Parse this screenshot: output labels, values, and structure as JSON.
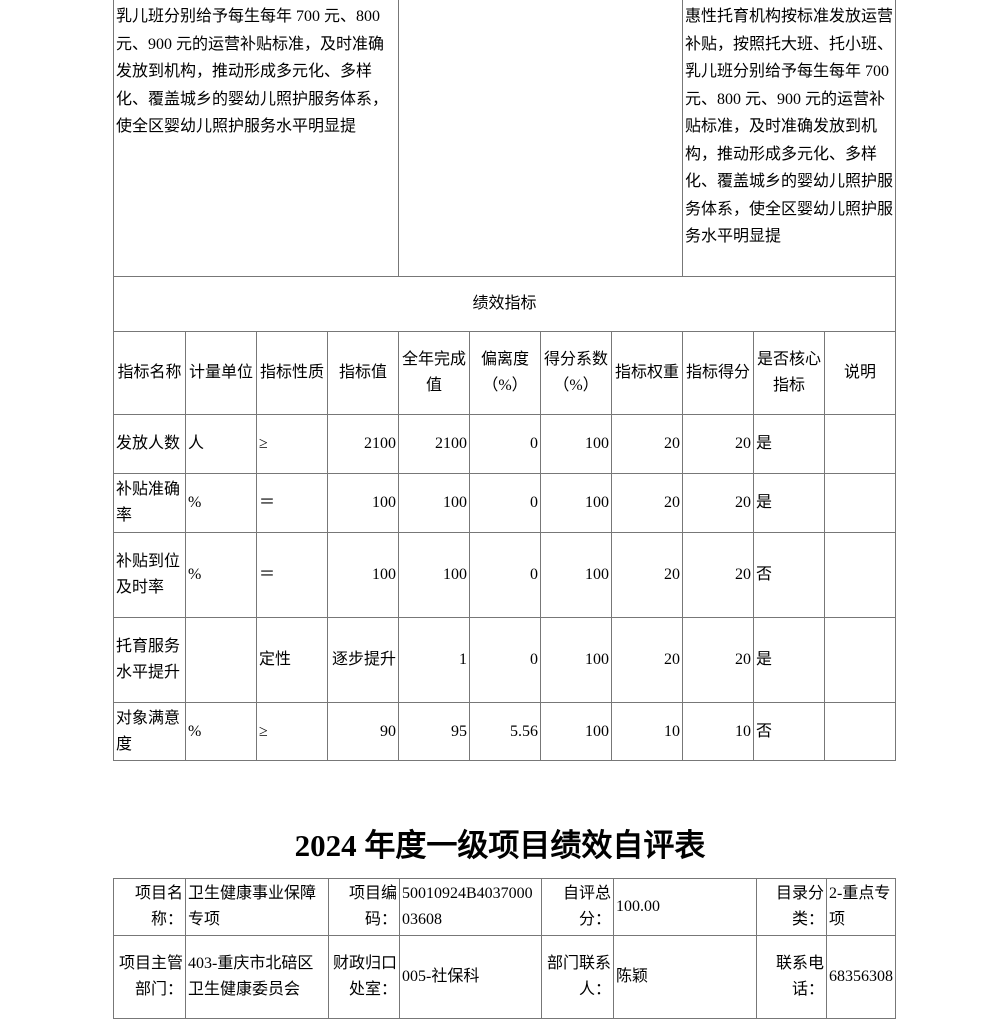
{
  "top_row": {
    "left": "乳儿班分别给予每生每年 700 元、800 元、900 元的运营补贴标准，及时准确发放到机构，推动形成多元化、多样化、覆盖城乡的婴幼儿照护服务体系，使全区婴幼儿照护服务水平明显提",
    "middle": "",
    "right": "惠性托育机构按标准发放运营补贴，按照托大班、托小班、乳儿班分别给予每生每年 700 元、800 元、900 元的运营补贴标准，及时准确发放到机构，推动形成多元化、多样化、覆盖城乡的婴幼儿照护服务体系，使全区婴幼儿照护服务水平明显提"
  },
  "section_title": "绩效指标",
  "headers": [
    "指标名称",
    "计量单位",
    "指标性质",
    "指标值",
    "全年完成值",
    "偏离度（%）",
    "得分系数（%）",
    "指标权重",
    "指标得分",
    "是否核心指标",
    "说明"
  ],
  "rows": [
    [
      "发放人数",
      "人",
      "≥",
      "2100",
      "2100",
      "0",
      "100",
      "20",
      "20",
      "是",
      ""
    ],
    [
      "补贴准确率",
      "%",
      "＝",
      "100",
      "100",
      "0",
      "100",
      "20",
      "20",
      "是",
      ""
    ],
    [
      "补贴到位及时率",
      "%",
      "＝",
      "100",
      "100",
      "0",
      "100",
      "20",
      "20",
      "否",
      ""
    ],
    [
      "托育服务水平提升",
      "",
      "定性",
      "逐步提升",
      "1",
      "0",
      "100",
      "20",
      "20",
      "是",
      ""
    ],
    [
      "对象满意度",
      "%",
      "≥",
      "90",
      "95",
      "5.56",
      "100",
      "10",
      "10",
      "否",
      ""
    ]
  ],
  "title": "2024 年度一级项目绩效自评表",
  "info": {
    "r1": [
      "项目名称：",
      "卫生健康事业保障专项",
      "项目编码：",
      "50010924B403700003608",
      "自评总分：",
      "100.00",
      "目录分类：",
      "2-重点专项"
    ],
    "r2": [
      "项目主管部门：",
      "403-重庆市北碚区卫生健康委员会",
      "财政归口处室：",
      "005-社保科",
      "部门联系人：",
      "陈颖",
      "联系电话：",
      "68356308"
    ]
  }
}
